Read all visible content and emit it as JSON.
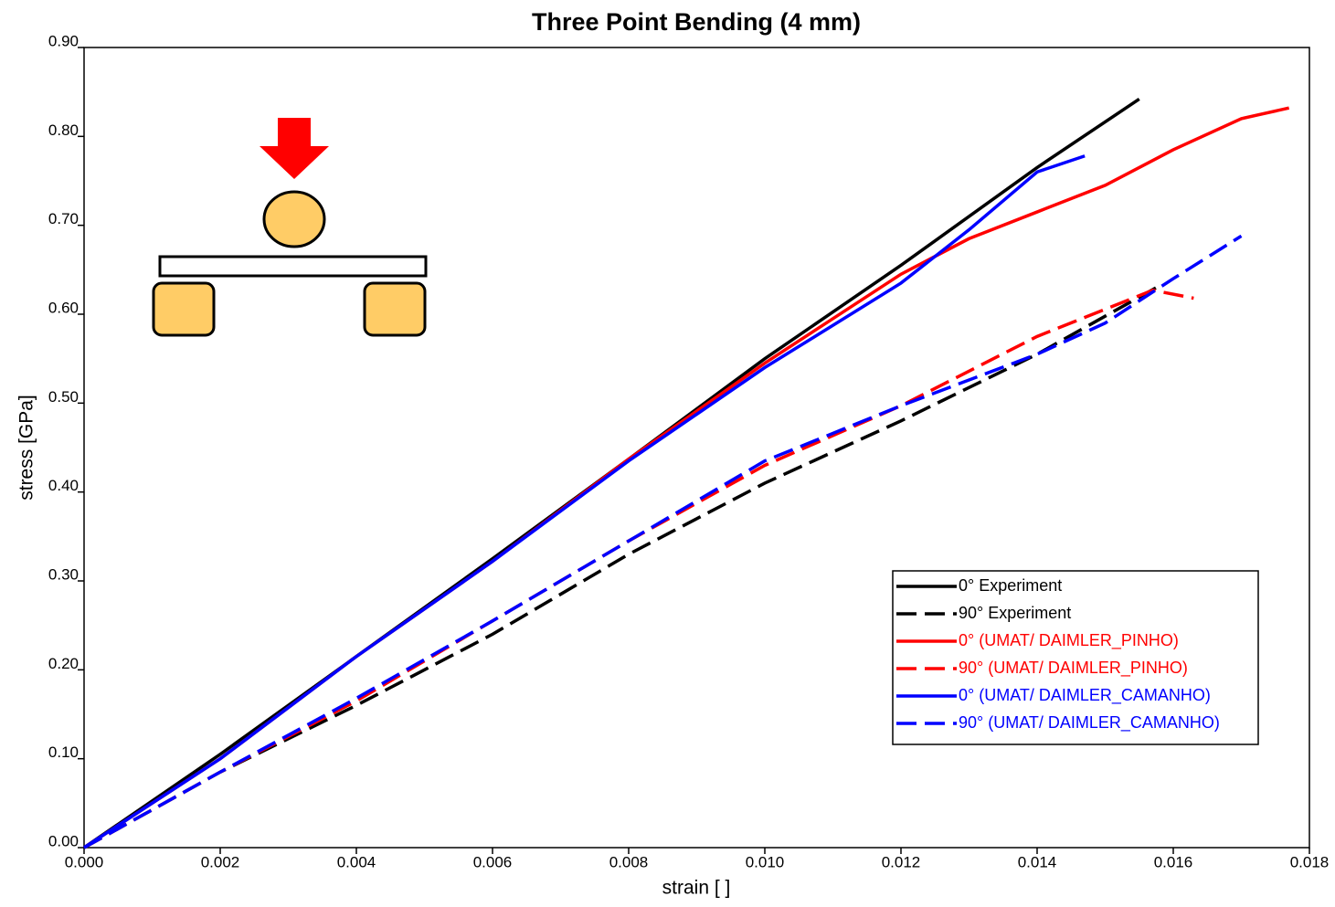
{
  "chart_data": {
    "type": "line",
    "title": "Three Point Bending (4 mm)",
    "x_label": "strain [ ]",
    "y_label": "stress [GPa]",
    "xlim": [
      0,
      0.018
    ],
    "ylim": [
      0,
      0.9
    ],
    "xticks": [
      {
        "value": 0,
        "label": "0.000"
      },
      {
        "value": 0.002,
        "label": "0.002"
      },
      {
        "value": 0.004,
        "label": "0.004"
      },
      {
        "value": 0.006,
        "label": "0.006"
      },
      {
        "value": 0.008,
        "label": "0.008"
      },
      {
        "value": 0.01,
        "label": "0.010"
      },
      {
        "value": 0.012,
        "label": "0.012"
      },
      {
        "value": 0.014,
        "label": "0.014"
      },
      {
        "value": 0.016,
        "label": "0.016"
      },
      {
        "value": 0.018,
        "label": "0.018"
      }
    ],
    "yticks": [
      {
        "value": 0,
        "label": "0.00"
      },
      {
        "value": 0.1,
        "label": "0.10"
      },
      {
        "value": 0.2,
        "label": "0.20"
      },
      {
        "value": 0.3,
        "label": "0.30"
      },
      {
        "value": 0.4,
        "label": "0.40"
      },
      {
        "value": 0.5,
        "label": "0.50"
      },
      {
        "value": 0.6,
        "label": "0.60"
      },
      {
        "value": 0.7,
        "label": "0.70"
      },
      {
        "value": 0.8,
        "label": "0.80"
      },
      {
        "value": 0.9,
        "label": "0.90"
      }
    ],
    "legend": "lower right",
    "series": [
      {
        "name": "0° Experiment",
        "color": "#000000",
        "style": "solid",
        "x": [
          0,
          0.002,
          0.004,
          0.006,
          0.008,
          0.01,
          0.012,
          0.014,
          0.0155
        ],
        "values": [
          0,
          0.105,
          0.215,
          0.325,
          0.437,
          0.55,
          0.655,
          0.765,
          0.842
        ]
      },
      {
        "name": "90° Experiment",
        "color": "#000000",
        "style": "dashed",
        "x": [
          0,
          0.002,
          0.004,
          0.006,
          0.008,
          0.01,
          0.012,
          0.014,
          0.0158
        ],
        "values": [
          0,
          0.085,
          0.16,
          0.24,
          0.33,
          0.41,
          0.48,
          0.555,
          0.632
        ]
      },
      {
        "name": "0° (UMAT/ DAIMLER_PINHO)",
        "color": "#ff0000",
        "style": "solid",
        "x": [
          0,
          0.002,
          0.004,
          0.006,
          0.008,
          0.01,
          0.012,
          0.013,
          0.014,
          0.015,
          0.016,
          0.017,
          0.0177
        ],
        "values": [
          0,
          0.1,
          0.215,
          0.322,
          0.437,
          0.545,
          0.645,
          0.685,
          0.715,
          0.745,
          0.785,
          0.82,
          0.832
        ]
      },
      {
        "name": "90° (UMAT/ DAIMLER_PINHO)",
        "color": "#ff0000",
        "style": "dashed",
        "x": [
          0,
          0.002,
          0.004,
          0.006,
          0.008,
          0.01,
          0.012,
          0.014,
          0.0157,
          0.0163
        ],
        "values": [
          0,
          0.085,
          0.165,
          0.255,
          0.345,
          0.43,
          0.497,
          0.575,
          0.627,
          0.618
        ]
      },
      {
        "name": "0° (UMAT/ DAIMLER_CAMANHO)",
        "color": "#0000ff",
        "style": "solid",
        "x": [
          0,
          0.002,
          0.004,
          0.006,
          0.008,
          0.01,
          0.012,
          0.013,
          0.014,
          0.0147
        ],
        "values": [
          0,
          0.1,
          0.215,
          0.322,
          0.435,
          0.54,
          0.635,
          0.695,
          0.76,
          0.778
        ]
      },
      {
        "name": "90° (UMAT/ DAIMLER_CAMANHO)",
        "color": "#0000ff",
        "style": "dashed",
        "x": [
          0,
          0.002,
          0.004,
          0.006,
          0.008,
          0.01,
          0.012,
          0.014,
          0.015,
          0.016,
          0.017
        ],
        "values": [
          0,
          0.085,
          0.168,
          0.255,
          0.345,
          0.435,
          0.497,
          0.555,
          0.59,
          0.64,
          0.688
        ]
      }
    ]
  }
}
